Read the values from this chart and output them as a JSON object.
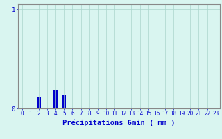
{
  "hours": [
    0,
    1,
    2,
    3,
    4,
    5,
    6,
    7,
    8,
    9,
    10,
    11,
    12,
    13,
    14,
    15,
    16,
    17,
    18,
    19,
    20,
    21,
    22,
    23
  ],
  "values": [
    0,
    0,
    0.12,
    0,
    0.18,
    0.14,
    0,
    0,
    0,
    0,
    0,
    0,
    0,
    0,
    0,
    0,
    0,
    0,
    0,
    0,
    0,
    0,
    0,
    0
  ],
  "bar_color": "#0000cc",
  "background_color": "#d9f5f0",
  "grid_color": "#aad4cc",
  "axis_color": "#888888",
  "text_color": "#0000cc",
  "xlabel": "Précipitations 6min ( mm )",
  "ylim": [
    0,
    1.05
  ],
  "yticks": [
    0,
    1
  ],
  "xlim": [
    -0.5,
    23.5
  ],
  "label_fontsize": 7.5,
  "tick_fontsize": 5.5
}
